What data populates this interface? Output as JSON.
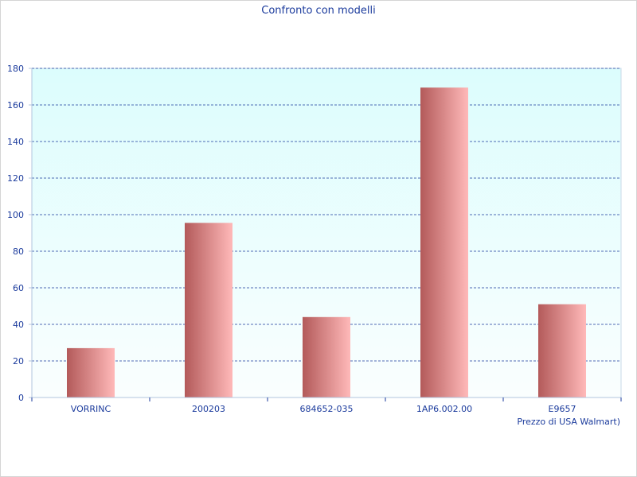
{
  "chart_data": {
    "type": "bar",
    "title": "Confronto con modelli",
    "xlabel": "Prezzo di USA Walmart)",
    "ylabel": "",
    "categories": [
      "VORRINC",
      "200203",
      "684652-035",
      "1AP6.002.00",
      "E9657"
    ],
    "values": [
      27,
      95.5,
      44,
      169.5,
      51
    ],
    "ylim": [
      0,
      180
    ],
    "yticks": [
      0,
      20,
      40,
      60,
      80,
      100,
      120,
      140,
      160,
      180
    ],
    "grid": true,
    "legend": "none",
    "colors": {
      "bar_dark": "#b35a5a",
      "bar_light": "#ffb9b9",
      "plot_bg_top": "#dcfdfd",
      "plot_bg_bottom": "#fafefe",
      "grid": "#1a3a9c",
      "axis": "#b0c4de",
      "text": "#1a3a9c"
    }
  }
}
